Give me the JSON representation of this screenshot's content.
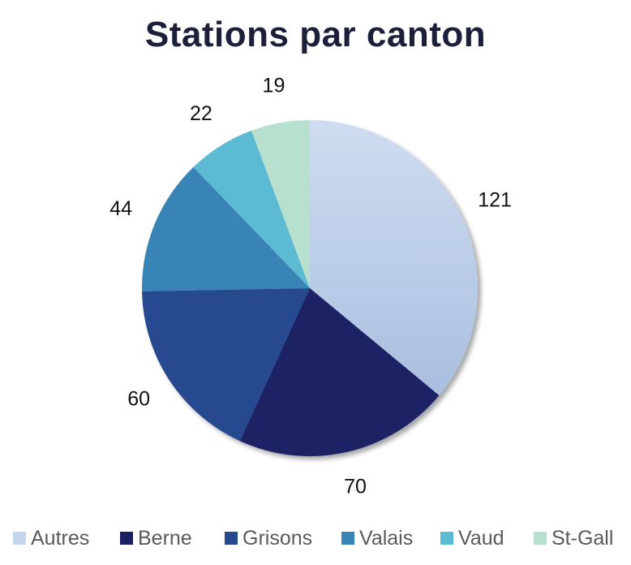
{
  "chart_data": {
    "type": "pie",
    "title": "Stations par canton",
    "categories": [
      "Autres",
      "Berne",
      "Grisons",
      "Valais",
      "Vaud",
      "St-Gall"
    ],
    "values": [
      121,
      70,
      60,
      44,
      22,
      19
    ],
    "colors": [
      "#c5d6ee",
      "#1b2063",
      "#27498f",
      "#3984b6",
      "#5bbbd3",
      "#b8e0cf"
    ],
    "data_labels": [
      "121",
      "70",
      "60",
      "44",
      "22",
      "19"
    ],
    "start_angle_deg": 0,
    "direction": "clockwise",
    "legend_position": "bottom"
  }
}
